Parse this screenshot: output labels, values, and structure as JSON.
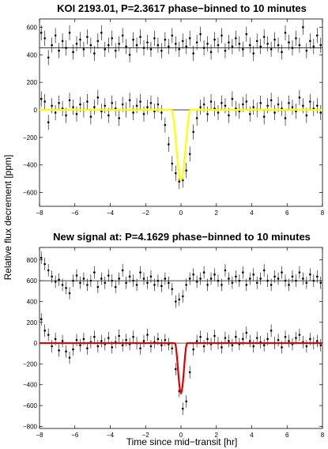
{
  "ylabel": "Relative flux decrement [ppm]",
  "xlabel": "Time since mid−transit [hr]",
  "chart_data": [
    {
      "type": "scatter",
      "title": "KOI 2193.01, P=2.3617 phase−binned to 10 minutes",
      "xlim": [
        -8,
        8
      ],
      "ylim": [
        -700,
        660
      ],
      "xticks": [
        -8,
        -6,
        -4,
        -2,
        0,
        2,
        4,
        6,
        8
      ],
      "yticks": [
        600,
        400,
        200,
        0,
        -200,
        -400,
        -600
      ],
      "offset": 450,
      "err": 55,
      "model": {
        "color": "#ffff00",
        "depth": 510,
        "half_width": 0.55
      },
      "series": [
        {
          "role": "offset-data",
          "x": [
            -7.9,
            -7.7,
            -7.5,
            -7.3,
            -7.1,
            -6.9,
            -6.7,
            -6.5,
            -6.3,
            -6.1,
            -5.9,
            -5.7,
            -5.5,
            -5.3,
            -5.1,
            -4.9,
            -4.7,
            -4.5,
            -4.3,
            -4.1,
            -3.9,
            -3.7,
            -3.5,
            -3.3,
            -3.1,
            -2.9,
            -2.7,
            -2.5,
            -2.3,
            -2.1,
            -1.9,
            -1.7,
            -1.5,
            -1.3,
            -1.1,
            -0.9,
            -0.7,
            -0.5,
            -0.3,
            -0.1,
            0.1,
            0.3,
            0.5,
            0.7,
            0.9,
            1.1,
            1.3,
            1.5,
            1.7,
            1.9,
            2.1,
            2.3,
            2.5,
            2.7,
            2.9,
            3.1,
            3.3,
            3.5,
            3.7,
            3.9,
            4.1,
            4.3,
            4.5,
            4.7,
            4.9,
            5.1,
            5.3,
            5.5,
            5.7,
            5.9,
            6.1,
            6.3,
            6.5,
            6.7,
            6.9,
            7.1,
            7.3,
            7.5,
            7.7,
            7.9
          ],
          "y": [
            560,
            520,
            380,
            470,
            540,
            430,
            500,
            450,
            560,
            420,
            480,
            510,
            440,
            530,
            470,
            410,
            500,
            560,
            440,
            470,
            520,
            430,
            480,
            540,
            460,
            400,
            510,
            470,
            530,
            450,
            490,
            440,
            520,
            470,
            430,
            510,
            460,
            540,
            480,
            440,
            500,
            460,
            520,
            410,
            490,
            550,
            450,
            480,
            420,
            510,
            470,
            540,
            430,
            490,
            460,
            520,
            480,
            440,
            550,
            470,
            410,
            500,
            460,
            530,
            480,
            440,
            510,
            470,
            420,
            560,
            490,
            450,
            520,
            470,
            600,
            430,
            500,
            460,
            540,
            470
          ]
        },
        {
          "role": "data",
          "x": [
            -7.9,
            -7.7,
            -7.5,
            -7.3,
            -7.1,
            -6.9,
            -6.7,
            -6.5,
            -6.3,
            -6.1,
            -5.9,
            -5.7,
            -5.5,
            -5.3,
            -5.1,
            -4.9,
            -4.7,
            -4.5,
            -4.3,
            -4.1,
            -3.9,
            -3.7,
            -3.5,
            -3.3,
            -3.1,
            -2.9,
            -2.7,
            -2.5,
            -2.3,
            -2.1,
            -1.9,
            -1.7,
            -1.5,
            -1.3,
            -1.1,
            -0.9,
            -0.7,
            -0.5,
            -0.3,
            -0.1,
            0.1,
            0.3,
            0.5,
            0.7,
            0.9,
            1.1,
            1.3,
            1.5,
            1.7,
            1.9,
            2.1,
            2.3,
            2.5,
            2.7,
            2.9,
            3.1,
            3.3,
            3.5,
            3.7,
            3.9,
            4.1,
            4.3,
            4.5,
            4.7,
            4.9,
            5.1,
            5.3,
            5.5,
            5.7,
            5.9,
            6.1,
            6.3,
            6.5,
            6.7,
            6.9,
            7.1,
            7.3,
            7.5,
            7.7,
            7.9
          ],
          "y": [
            80,
            60,
            -90,
            30,
            -20,
            50,
            10,
            -40,
            70,
            20,
            -30,
            40,
            0,
            60,
            -50,
            20,
            90,
            -10,
            30,
            -40,
            50,
            10,
            -60,
            40,
            0,
            70,
            -20,
            30,
            60,
            -30,
            20,
            50,
            -10,
            40,
            -20,
            -110,
            -250,
            -390,
            -460,
            -520,
            -510,
            -440,
            -320,
            -160,
            -60,
            20,
            40,
            -30,
            60,
            10,
            -20,
            50,
            30,
            -40,
            80,
            10,
            -10,
            40,
            60,
            -30,
            20,
            0,
            50,
            -50,
            30,
            70,
            -20,
            40,
            10,
            -60,
            50,
            20,
            -10,
            90,
            30,
            -40,
            60,
            10,
            30,
            -20
          ]
        }
      ]
    },
    {
      "type": "scatter",
      "title": "New signal at: P=4.1629 phase−binned to 10 minutes",
      "xlim": [
        -8,
        8
      ],
      "ylim": [
        -820,
        920
      ],
      "xticks": [
        -8,
        -6,
        -4,
        -2,
        0,
        2,
        4,
        6,
        8
      ],
      "yticks": [
        800,
        600,
        400,
        200,
        0,
        -200,
        -400,
        -600,
        -800
      ],
      "offset": 600,
      "err": 60,
      "model": {
        "color": "#e00000",
        "depth": 480,
        "half_width": 0.35
      },
      "series": [
        {
          "role": "offset-data",
          "x": [
            -7.9,
            -7.7,
            -7.5,
            -7.3,
            -7.1,
            -6.9,
            -6.7,
            -6.5,
            -6.3,
            -6.1,
            -5.9,
            -5.7,
            -5.5,
            -5.3,
            -5.1,
            -4.9,
            -4.7,
            -4.5,
            -4.3,
            -4.1,
            -3.9,
            -3.7,
            -3.5,
            -3.3,
            -3.1,
            -2.9,
            -2.7,
            -2.5,
            -2.3,
            -2.1,
            -1.9,
            -1.7,
            -1.5,
            -1.3,
            -1.1,
            -0.9,
            -0.7,
            -0.5,
            -0.3,
            -0.1,
            0.1,
            0.3,
            0.5,
            0.7,
            0.9,
            1.1,
            1.3,
            1.5,
            1.7,
            1.9,
            2.1,
            2.3,
            2.5,
            2.7,
            2.9,
            3.1,
            3.3,
            3.5,
            3.7,
            3.9,
            4.1,
            4.3,
            4.5,
            4.7,
            4.9,
            5.1,
            5.3,
            5.5,
            5.7,
            5.9,
            6.1,
            6.3,
            6.5,
            6.7,
            6.9,
            7.1,
            7.3,
            7.5,
            7.7,
            7.9
          ],
          "y": [
            820,
            760,
            700,
            640,
            590,
            610,
            560,
            530,
            480,
            600,
            650,
            580,
            620,
            560,
            600,
            680,
            540,
            620,
            580,
            650,
            600,
            540,
            620,
            700,
            580,
            640,
            600,
            560,
            680,
            620,
            580,
            640,
            560,
            600,
            550,
            620,
            580,
            520,
            400,
            420,
            450,
            560,
            620,
            660,
            590,
            620,
            680,
            560,
            620,
            660,
            600,
            560,
            700,
            620,
            580,
            640,
            600,
            680,
            560,
            620,
            660,
            580,
            620,
            700,
            600,
            560,
            640,
            620,
            680,
            600,
            560,
            640,
            600,
            680,
            620,
            580,
            660,
            600,
            640,
            580
          ]
        },
        {
          "role": "data",
          "x": [
            -7.9,
            -7.7,
            -7.5,
            -7.3,
            -7.1,
            -6.9,
            -6.7,
            -6.5,
            -6.3,
            -6.1,
            -5.9,
            -5.7,
            -5.5,
            -5.3,
            -5.1,
            -4.9,
            -4.7,
            -4.5,
            -4.3,
            -4.1,
            -3.9,
            -3.7,
            -3.5,
            -3.3,
            -3.1,
            -2.9,
            -2.7,
            -2.5,
            -2.3,
            -2.1,
            -1.9,
            -1.7,
            -1.5,
            -1.3,
            -1.1,
            -0.9,
            -0.7,
            -0.5,
            -0.3,
            -0.1,
            0.1,
            0.3,
            0.5,
            0.7,
            0.9,
            1.1,
            1.3,
            1.5,
            1.7,
            1.9,
            2.1,
            2.3,
            2.5,
            2.7,
            2.9,
            3.1,
            3.3,
            3.5,
            3.7,
            3.9,
            4.1,
            4.3,
            4.5,
            4.7,
            4.9,
            5.1,
            5.3,
            5.5,
            5.7,
            5.9,
            6.1,
            6.3,
            6.5,
            6.7,
            6.9,
            7.1,
            7.3,
            7.5,
            7.7,
            7.9
          ],
          "y": [
            230,
            120,
            80,
            -30,
            40,
            -70,
            20,
            -80,
            -140,
            -60,
            30,
            -20,
            40,
            -50,
            10,
            60,
            -30,
            20,
            -10,
            50,
            -40,
            10,
            70,
            -20,
            30,
            -10,
            60,
            0,
            -50,
            20,
            80,
            -30,
            10,
            40,
            -20,
            30,
            -10,
            -50,
            -250,
            -460,
            -630,
            -560,
            -280,
            -60,
            20,
            60,
            -30,
            40,
            -10,
            70,
            0,
            -40,
            50,
            20,
            -20,
            60,
            -10,
            40,
            100,
            20,
            -30,
            50,
            10,
            -20,
            40,
            120,
            0,
            30,
            -40,
            60,
            20,
            -10,
            50,
            80,
            10,
            -30,
            40,
            0,
            20,
            -20
          ]
        }
      ]
    }
  ]
}
